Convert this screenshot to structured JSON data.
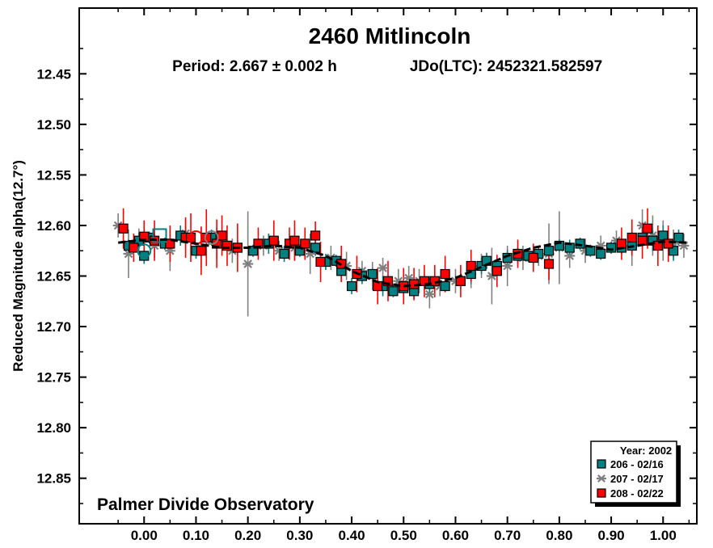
{
  "chart_data": {
    "type": "scatter",
    "title": "2460 Mitlincoln",
    "subtitle_period": "Period: 2.667 ± 0.002 h",
    "subtitle_epoch": "JDo(LTC): 2452321.582597",
    "xlabel": "",
    "ylabel": "Reduced Magnitude alpha(12.7°)",
    "credit": "Palmer Divide Observatory",
    "xlim": [
      -0.125,
      1.065
    ],
    "ylim": [
      12.895,
      12.385
    ],
    "y_inverted": true,
    "grid": false,
    "x_ticks": [
      "0.00",
      "0.10",
      "0.20",
      "0.30",
      "0.40",
      "0.50",
      "0.60",
      "0.70",
      "0.80",
      "0.90",
      "1.00"
    ],
    "y_ticks": [
      "12.45",
      "12.50",
      "12.55",
      "12.60",
      "12.65",
      "12.70",
      "12.75",
      "12.80",
      "12.85"
    ],
    "legend": {
      "placement": "bottom-right",
      "header": "Year: 2002",
      "entries": [
        {
          "label": "206 - 02/16",
          "marker": "square",
          "color": "#008080"
        },
        {
          "label": "207 - 02/17",
          "marker": "asterisk",
          "color": "#808080"
        },
        {
          "label": "208 - 02/22",
          "marker": "square",
          "color": "#ff0000"
        }
      ]
    },
    "fit_curve": {
      "x": [
        -0.05,
        0.0,
        0.05,
        0.1,
        0.15,
        0.2,
        0.25,
        0.3,
        0.35,
        0.4,
        0.45,
        0.5,
        0.55,
        0.6,
        0.65,
        0.7,
        0.75,
        0.8,
        0.85,
        0.9,
        0.95,
        1.0,
        1.05
      ],
      "y": [
        12.617,
        12.614,
        12.614,
        12.618,
        12.622,
        12.622,
        12.62,
        12.622,
        12.63,
        12.645,
        12.656,
        12.66,
        12.658,
        12.652,
        12.641,
        12.63,
        12.622,
        12.617,
        12.62,
        12.624,
        12.62,
        12.616,
        12.617
      ],
      "color": "#000000"
    },
    "series": [
      {
        "name": "206 - 02/16",
        "marker": "square",
        "color": "#008080",
        "x": [
          -0.03,
          -0.01,
          0.0,
          0.01,
          0.04,
          0.07,
          0.1,
          0.13,
          0.16,
          0.18,
          0.21,
          0.24,
          0.27,
          0.3,
          0.33,
          0.35,
          0.37,
          0.38,
          0.4,
          0.42,
          0.44,
          0.46,
          0.48,
          0.5,
          0.52,
          0.55,
          0.58,
          0.61,
          0.63,
          0.65,
          0.66,
          0.68,
          0.7,
          0.72,
          0.74,
          0.76,
          0.78,
          0.8,
          0.82,
          0.84,
          0.86,
          0.88,
          0.9,
          0.92,
          0.94,
          0.96,
          0.98,
          1.0,
          1.02,
          1.03
        ],
        "y": [
          12.62,
          12.615,
          12.63,
          12.612,
          12.618,
          12.61,
          12.625,
          12.612,
          12.62,
          12.622,
          12.625,
          12.618,
          12.628,
          12.625,
          12.622,
          12.636,
          12.635,
          12.645,
          12.66,
          12.65,
          12.648,
          12.66,
          12.665,
          12.662,
          12.665,
          12.658,
          12.66,
          12.655,
          12.648,
          12.64,
          12.635,
          12.64,
          12.632,
          12.63,
          12.63,
          12.628,
          12.625,
          12.62,
          12.622,
          12.618,
          12.625,
          12.628,
          12.622,
          12.622,
          12.62,
          12.612,
          12.615,
          12.61,
          12.625,
          12.612
        ],
        "err": [
          0.006,
          0.008,
          0.008,
          0.006,
          0.006,
          0.01,
          0.008,
          0.008,
          0.006,
          0.008,
          0.006,
          0.01,
          0.008,
          0.006,
          0.008,
          0.008,
          0.006,
          0.01,
          0.008,
          0.008,
          0.006,
          0.01,
          0.006,
          0.008,
          0.008,
          0.008,
          0.006,
          0.008,
          0.01,
          0.008,
          0.008,
          0.006,
          0.008,
          0.008,
          0.006,
          0.006,
          0.006,
          0.006,
          0.008,
          0.006,
          0.006,
          0.006,
          0.006,
          0.006,
          0.008,
          0.008,
          0.01,
          0.01,
          0.01,
          0.008
        ]
      },
      {
        "name": "207 - 02/17",
        "marker": "asterisk",
        "color": "#808080",
        "x": [
          -0.05,
          -0.03,
          -0.01,
          0.02,
          0.05,
          0.08,
          0.11,
          0.14,
          0.17,
          0.2,
          0.23,
          0.26,
          0.29,
          0.32,
          0.36,
          0.39,
          0.42,
          0.44,
          0.46,
          0.49,
          0.51,
          0.53,
          0.55,
          0.57,
          0.6,
          0.63,
          0.65,
          0.67,
          0.7,
          0.73,
          0.76,
          0.78,
          0.8,
          0.82,
          0.85,
          0.88,
          0.91,
          0.94,
          0.96,
          0.98,
          1.0,
          1.02,
          1.04
        ],
        "y": [
          12.6,
          12.628,
          12.615,
          12.62,
          12.625,
          12.608,
          12.622,
          12.618,
          12.625,
          12.638,
          12.62,
          12.625,
          12.622,
          12.628,
          12.632,
          12.64,
          12.645,
          12.65,
          12.642,
          12.655,
          12.652,
          12.655,
          12.668,
          12.66,
          12.655,
          12.648,
          12.64,
          12.65,
          12.64,
          12.632,
          12.63,
          12.628,
          12.622,
          12.63,
          12.625,
          12.62,
          12.615,
          12.62,
          12.6,
          12.61,
          12.615,
          12.618,
          12.62
        ],
        "err": [
          0.012,
          0.024,
          0.012,
          0.012,
          0.02,
          0.014,
          0.02,
          0.016,
          0.012,
          0.052,
          0.01,
          0.01,
          0.012,
          0.02,
          0.012,
          0.014,
          0.01,
          0.014,
          0.01,
          0.012,
          0.012,
          0.012,
          0.014,
          0.01,
          0.012,
          0.014,
          0.012,
          0.028,
          0.02,
          0.012,
          0.01,
          0.03,
          0.036,
          0.012,
          0.012,
          0.01,
          0.01,
          0.02,
          0.016,
          0.02,
          0.02,
          0.014,
          0.012
        ]
      },
      {
        "name": "208 - 02/22",
        "marker": "square",
        "color": "#ff0000",
        "x": [
          -0.04,
          -0.02,
          0.0,
          0.02,
          0.05,
          0.08,
          0.09,
          0.11,
          0.12,
          0.14,
          0.15,
          0.16,
          0.18,
          0.22,
          0.25,
          0.28,
          0.29,
          0.31,
          0.33,
          0.34,
          0.38,
          0.41,
          0.45,
          0.47,
          0.5,
          0.52,
          0.54,
          0.56,
          0.58,
          0.61,
          0.63,
          0.68,
          0.72,
          0.75,
          0.78,
          0.92,
          0.94,
          0.96,
          0.97,
          0.99,
          1.01
        ],
        "y": [
          12.603,
          12.622,
          12.611,
          12.615,
          12.618,
          12.612,
          12.612,
          12.625,
          12.612,
          12.618,
          12.61,
          12.62,
          12.622,
          12.618,
          12.615,
          12.618,
          12.615,
          12.618,
          12.61,
          12.636,
          12.638,
          12.648,
          12.66,
          12.655,
          12.66,
          12.658,
          12.655,
          12.655,
          12.648,
          12.655,
          12.64,
          12.645,
          12.628,
          12.632,
          12.638,
          12.618,
          12.612,
          12.615,
          12.603,
          12.62,
          12.618
        ],
        "err": [
          0.02,
          0.014,
          0.016,
          0.02,
          0.018,
          0.02,
          0.024,
          0.024,
          0.028,
          0.024,
          0.02,
          0.02,
          0.024,
          0.016,
          0.02,
          0.016,
          0.02,
          0.016,
          0.014,
          0.02,
          0.018,
          0.018,
          0.018,
          0.02,
          0.018,
          0.016,
          0.016,
          0.016,
          0.018,
          0.016,
          0.016,
          0.016,
          0.014,
          0.014,
          0.016,
          0.016,
          0.018,
          0.018,
          0.02,
          0.02,
          0.018
        ]
      }
    ],
    "highlight_markers": [
      {
        "x": 0.0,
        "y": 12.625,
        "shape": "circle",
        "color": "#008080"
      },
      {
        "x": 0.03,
        "y": 12.61,
        "shape": "square",
        "color": "#008080"
      },
      {
        "x": 0.1,
        "y": 12.612,
        "shape": "circle",
        "color": "#ff0000"
      },
      {
        "x": 0.13,
        "y": 12.612,
        "shape": "circle",
        "color": "#808080"
      }
    ]
  }
}
